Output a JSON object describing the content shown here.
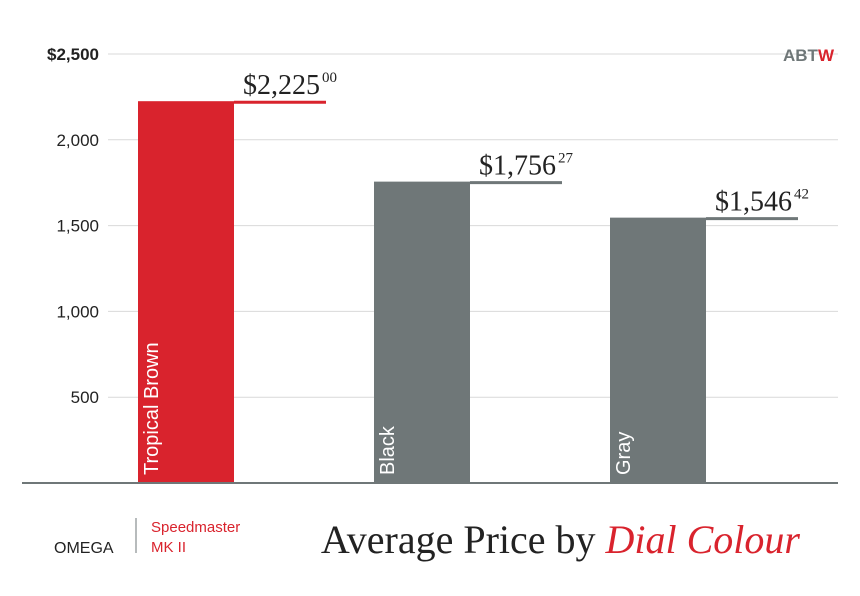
{
  "brand": {
    "logo_text_gray": "ABT",
    "logo_text_red": "W"
  },
  "footer": {
    "maker": "OMEGA",
    "model_line1": "Speedmaster",
    "model_line2": "MK II",
    "title_plain": "Average Price by ",
    "title_emph": "Dial Colour"
  },
  "colors": {
    "accent_red": "#d9232d",
    "bar_gray": "#6f7778",
    "axis_gray": "#6f7778",
    "grid": "#d9d9d9",
    "text": "#222222"
  },
  "chart_data": {
    "type": "bar",
    "categories": [
      "Tropical Brown",
      "Black",
      "Gray"
    ],
    "values": [
      2225.0,
      1756.27,
      1546.42
    ],
    "value_labels": [
      {
        "main": "$2,225",
        "cents": "00"
      },
      {
        "main": "$1,756",
        "cents": "27"
      },
      {
        "main": "$1,546",
        "cents": "42"
      }
    ],
    "bar_colors": [
      "#d9232d",
      "#6f7778",
      "#6f7778"
    ],
    "ylim": [
      0,
      2500
    ],
    "yticks": [
      {
        "value": 500,
        "label": "500"
      },
      {
        "value": 1000,
        "label": "1,000"
      },
      {
        "value": 1500,
        "label": "1,500"
      },
      {
        "value": 2000,
        "label": "2,000"
      },
      {
        "value": 2500,
        "label": "$2,500"
      }
    ],
    "grid": true,
    "title": "Average Price by Dial Colour"
  }
}
